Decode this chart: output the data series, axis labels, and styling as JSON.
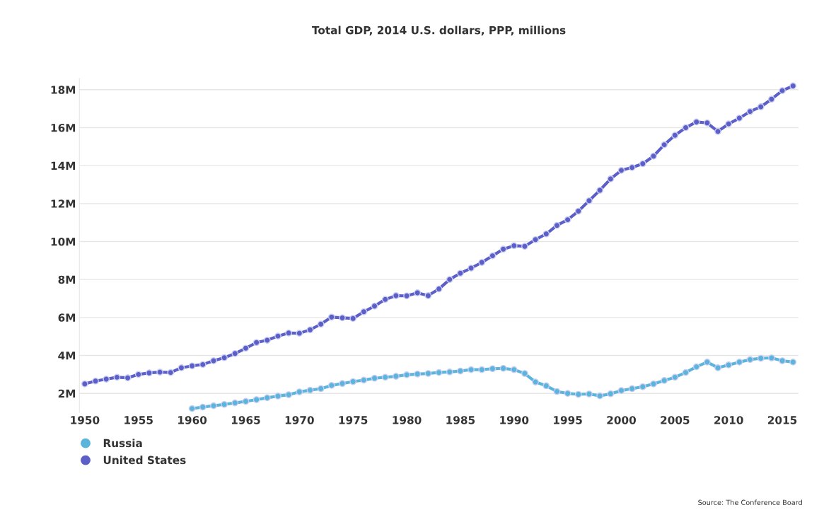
{
  "chart_data": {
    "type": "line",
    "title": "Total GDP, 2014 U.S. dollars, PPP, millions",
    "annotations": [
      "Source: The Conference Board"
    ],
    "x": [
      1950,
      1951,
      1952,
      1953,
      1954,
      1955,
      1956,
      1957,
      1958,
      1959,
      1960,
      1961,
      1962,
      1963,
      1964,
      1965,
      1966,
      1967,
      1968,
      1969,
      1970,
      1971,
      1972,
      1973,
      1974,
      1975,
      1976,
      1977,
      1978,
      1979,
      1980,
      1981,
      1982,
      1983,
      1984,
      1985,
      1986,
      1987,
      1988,
      1989,
      1990,
      1991,
      1992,
      1993,
      1994,
      1995,
      1996,
      1997,
      1998,
      1999,
      2000,
      2001,
      2002,
      2003,
      2004,
      2005,
      2006,
      2007,
      2008,
      2009,
      2010,
      2011,
      2012,
      2013,
      2014,
      2015,
      2016
    ],
    "series": [
      {
        "name": "Russia",
        "color": "#5ab4dc",
        "values": [
          null,
          null,
          null,
          null,
          null,
          null,
          null,
          null,
          null,
          null,
          1.2,
          1.28,
          1.35,
          1.42,
          1.5,
          1.58,
          1.67,
          1.77,
          1.86,
          1.93,
          2.08,
          2.17,
          2.25,
          2.42,
          2.52,
          2.62,
          2.7,
          2.8,
          2.85,
          2.9,
          2.98,
          3.02,
          3.05,
          3.1,
          3.13,
          3.18,
          3.25,
          3.25,
          3.3,
          3.32,
          3.25,
          3.05,
          2.6,
          2.4,
          2.1,
          2.0,
          1.95,
          1.97,
          1.87,
          1.98,
          2.15,
          2.25,
          2.35,
          2.5,
          2.68,
          2.85,
          3.1,
          3.4,
          3.65,
          3.35,
          3.5,
          3.65,
          3.78,
          3.85,
          3.87,
          3.72,
          3.65
        ]
      },
      {
        "name": "United States",
        "color": "#5b5fc7",
        "values": [
          2.5,
          2.65,
          2.75,
          2.85,
          2.82,
          3.0,
          3.08,
          3.12,
          3.1,
          3.35,
          3.45,
          3.52,
          3.72,
          3.88,
          4.1,
          4.38,
          4.68,
          4.8,
          5.02,
          5.18,
          5.17,
          5.35,
          5.65,
          6.02,
          5.98,
          5.95,
          6.3,
          6.6,
          6.95,
          7.15,
          7.14,
          7.3,
          7.15,
          7.5,
          8.0,
          8.33,
          8.6,
          8.9,
          9.25,
          9.6,
          9.78,
          9.75,
          10.1,
          10.4,
          10.85,
          11.15,
          11.6,
          12.15,
          12.7,
          13.3,
          13.75,
          13.9,
          14.1,
          14.5,
          15.1,
          15.6,
          16.0,
          16.3,
          16.25,
          15.8,
          16.2,
          16.5,
          16.85,
          17.1,
          17.5,
          17.95,
          18.2
        ]
      }
    ],
    "xlim": [
      1949.5,
      2016.5
    ],
    "xticks": [
      1950,
      1955,
      1960,
      1965,
      1970,
      1975,
      1980,
      1985,
      1990,
      1995,
      2000,
      2005,
      2010,
      2015
    ],
    "ylim": [
      1.0,
      18.6
    ],
    "yticks": [
      {
        "value": 2,
        "label": "2M"
      },
      {
        "value": 4,
        "label": "4M"
      },
      {
        "value": 6,
        "label": "6M"
      },
      {
        "value": 8,
        "label": "8M"
      },
      {
        "value": 10,
        "label": "10M"
      },
      {
        "value": 12,
        "label": "12M"
      },
      {
        "value": 14,
        "label": "14M"
      },
      {
        "value": 16,
        "label": "16M"
      },
      {
        "value": 18,
        "label": "18M"
      }
    ],
    "grid": "y",
    "legend": "bottom left",
    "marker": "circle",
    "line_style": "solid"
  }
}
